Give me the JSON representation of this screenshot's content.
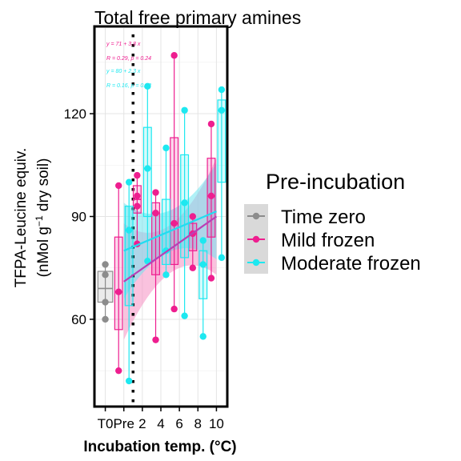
{
  "chart_data": {
    "type": "boxplot",
    "title": "Total free primary amines",
    "xlabel": "Incubation temp. (°C)",
    "ylabel_line1": "TFPA-Leucine equiv.",
    "ylabel_line2_pre": "(nMol g",
    "ylabel_line2_sup": "−1",
    "ylabel_line2_post": " dry soil)",
    "categories": [
      "T0",
      "Pre",
      "2",
      "4",
      "6",
      "8",
      "10"
    ],
    "category_positions": [
      0,
      1,
      2,
      3,
      4,
      5,
      6
    ],
    "yticks": [
      60,
      90,
      120
    ],
    "ylim": [
      35,
      145
    ],
    "xlim": [
      -0.5,
      6.5
    ],
    "grid": true,
    "legend": {
      "title": "Pre-incubation",
      "position": "right",
      "entries": [
        "Time zero",
        "Mild frozen",
        "Moderate frozen"
      ]
    },
    "colors": {
      "Time zero": "#8c8c8c",
      "Mild frozen": "#ee1e8f",
      "Moderate frozen": "#1de8f0",
      "mild_ribbon": "#f590c3",
      "moderate_ribbon": "#6fe6f0",
      "overlap_ribbon": "#9aa6d8",
      "mild_line": "#b93fb5",
      "moderate_line": "#22dcf0",
      "vline": "#000000"
    },
    "vline_x": 1.5,
    "annotations": [
      {
        "text": "y = 71 + 3.8 x",
        "series": "Mild frozen"
      },
      {
        "text": "R = 0.29, p = 0.24",
        "series": "Mild frozen"
      },
      {
        "text": "y = 80 + 2.3 x",
        "series": "Moderate frozen"
      },
      {
        "text": "R = 0.16, p = 0.52",
        "series": "Moderate frozen"
      }
    ],
    "series": [
      {
        "name": "Time zero",
        "points": [
          {
            "x": 0,
            "y": 76
          },
          {
            "x": 0,
            "y": 73
          },
          {
            "x": 0,
            "y": 65
          },
          {
            "x": 0,
            "y": 60
          }
        ],
        "boxes": [
          {
            "x": 0,
            "min": 60,
            "q1": 65,
            "median": 69,
            "q3": 74,
            "max": 76
          }
        ]
      },
      {
        "name": "Mild frozen",
        "points": [
          {
            "x": 1,
            "y": 99
          },
          {
            "x": 1,
            "y": 68
          },
          {
            "x": 1,
            "y": 45
          },
          {
            "x": 2,
            "y": 102
          },
          {
            "x": 2,
            "y": 96
          },
          {
            "x": 2,
            "y": 93
          },
          {
            "x": 2,
            "y": 82
          },
          {
            "x": 3,
            "y": 97
          },
          {
            "x": 3,
            "y": 91
          },
          {
            "x": 3,
            "y": 54
          },
          {
            "x": 4,
            "y": 137
          },
          {
            "x": 4,
            "y": 88
          },
          {
            "x": 4,
            "y": 63
          },
          {
            "x": 5,
            "y": 90
          },
          {
            "x": 5,
            "y": 85
          },
          {
            "x": 5,
            "y": 75
          },
          {
            "x": 6,
            "y": 117
          },
          {
            "x": 6,
            "y": 96
          },
          {
            "x": 6,
            "y": 72
          }
        ],
        "boxes": [
          {
            "x": 1,
            "min": 45,
            "q1": 57,
            "median": 68,
            "q3": 84,
            "max": 99
          },
          {
            "x": 2,
            "min": 82,
            "q1": 91,
            "median": 95,
            "q3": 99,
            "max": 102
          },
          {
            "x": 3,
            "min": 54,
            "q1": 73,
            "median": 91,
            "q3": 94,
            "max": 97
          },
          {
            "x": 4,
            "min": 63,
            "q1": 76,
            "median": 88,
            "q3": 113,
            "max": 137
          },
          {
            "x": 5,
            "min": 75,
            "q1": 80,
            "median": 85,
            "q3": 88,
            "max": 90
          },
          {
            "x": 6,
            "min": 72,
            "q1": 84,
            "median": 96,
            "q3": 107,
            "max": 117
          }
        ],
        "fit": {
          "intercept": 71,
          "slope": 3.8
        }
      },
      {
        "name": "Moderate frozen",
        "points": [
          {
            "x": 1,
            "y": 100
          },
          {
            "x": 1,
            "y": 86
          },
          {
            "x": 1,
            "y": 42
          },
          {
            "x": 2,
            "y": 128
          },
          {
            "x": 2,
            "y": 104
          },
          {
            "x": 2,
            "y": 77
          },
          {
            "x": 3,
            "y": 110
          },
          {
            "x": 3,
            "y": 80
          },
          {
            "x": 3,
            "y": 73
          },
          {
            "x": 4,
            "y": 121
          },
          {
            "x": 4,
            "y": 94
          },
          {
            "x": 4,
            "y": 61
          },
          {
            "x": 5,
            "y": 83
          },
          {
            "x": 5,
            "y": 76
          },
          {
            "x": 5,
            "y": 55
          },
          {
            "x": 6,
            "y": 127
          },
          {
            "x": 6,
            "y": 121
          },
          {
            "x": 6,
            "y": 78
          }
        ],
        "boxes": [
          {
            "x": 1,
            "min": 42,
            "q1": 64,
            "median": 86,
            "q3": 93,
            "max": 100
          },
          {
            "x": 2,
            "min": 77,
            "q1": 90,
            "median": 104,
            "q3": 116,
            "max": 128
          },
          {
            "x": 3,
            "min": 73,
            "q1": 76,
            "median": 80,
            "q3": 95,
            "max": 110
          },
          {
            "x": 4,
            "min": 61,
            "q1": 78,
            "median": 94,
            "q3": 108,
            "max": 121
          },
          {
            "x": 5,
            "min": 55,
            "q1": 66,
            "median": 76,
            "q3": 80,
            "max": 83
          },
          {
            "x": 6,
            "min": 78,
            "q1": 100,
            "median": 121,
            "q3": 124,
            "max": 127
          }
        ],
        "fit": {
          "intercept": 80,
          "slope": 2.3
        }
      }
    ]
  }
}
